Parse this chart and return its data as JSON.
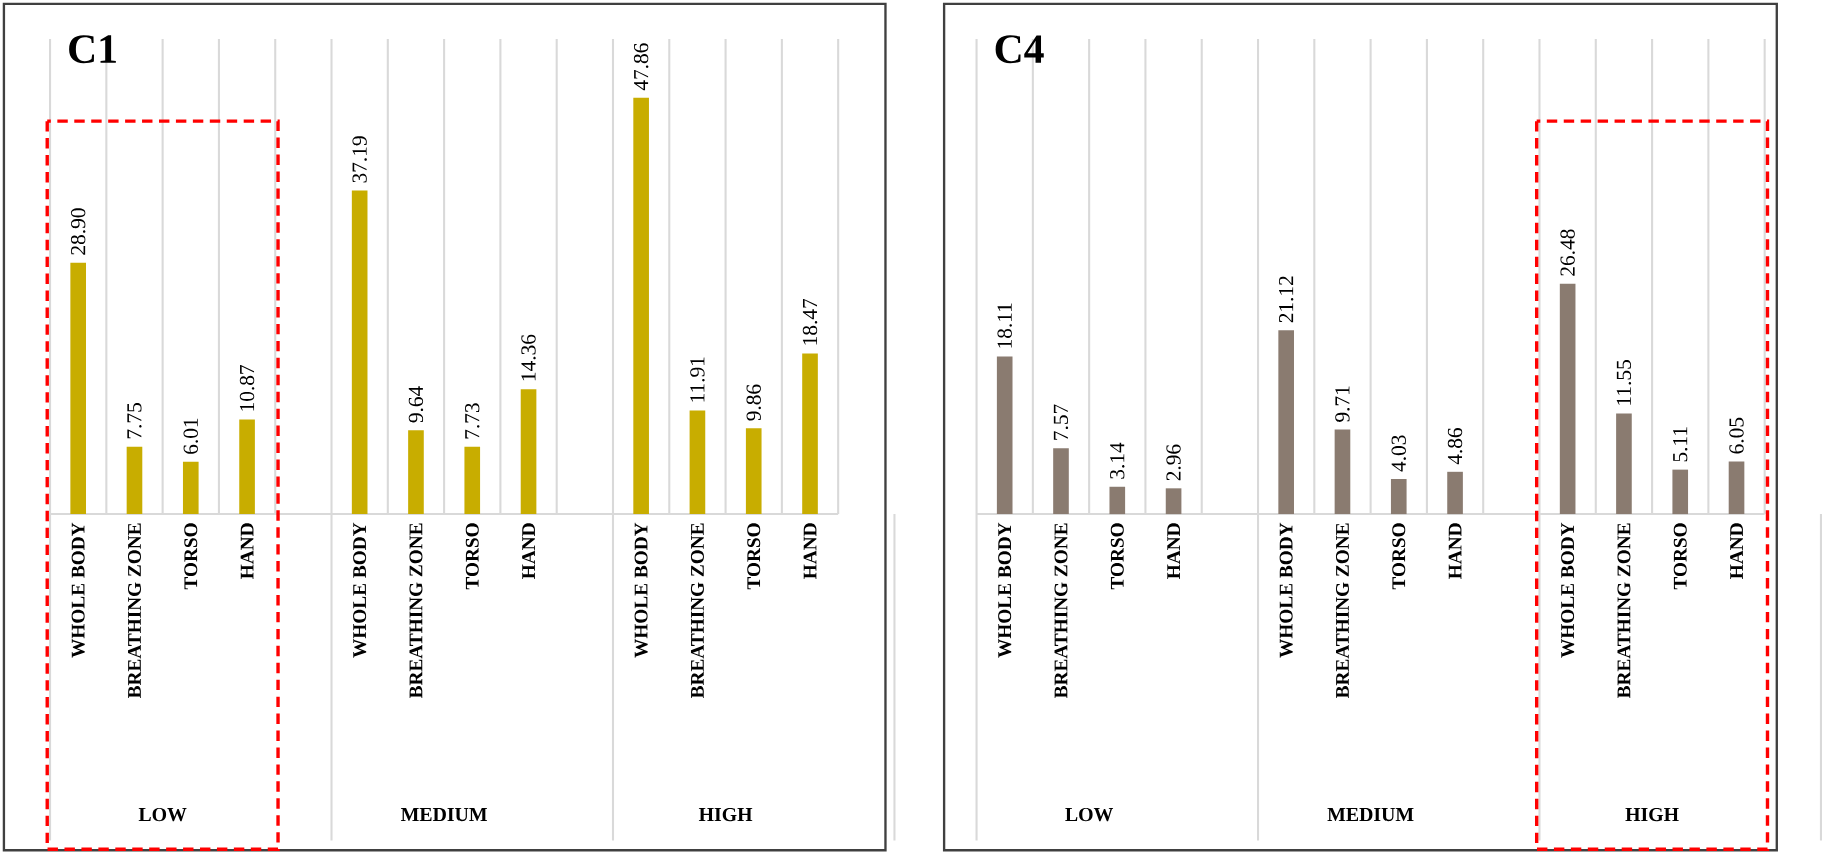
{
  "chart_data": [
    {
      "type": "bar",
      "title": "C1",
      "categories": [
        "WHOLE BODY",
        "BREATHING ZONE",
        "TORSO",
        "HAND",
        null,
        "WHOLE BODY",
        "BREATHING ZONE",
        "TORSO",
        "HAND",
        null,
        "WHOLE BODY",
        "BREATHING ZONE",
        "TORSO",
        "HAND"
      ],
      "values": [
        28.9,
        7.75,
        6.01,
        10.87,
        null,
        37.19,
        9.64,
        7.73,
        14.36,
        null,
        47.86,
        11.91,
        9.86,
        18.47
      ],
      "value_labels": [
        "28.90",
        "7.75",
        "6.01",
        "10.87",
        null,
        "37.19",
        "9.64",
        "7.73",
        "14.36",
        null,
        "47.86",
        "11.91",
        "9.86",
        "18.47"
      ],
      "color": "#c8ad00",
      "grid": "x",
      "annotations": [
        "LOW",
        "MEDIUM",
        "HIGH"
      ]
    },
    {
      "type": "bar",
      "title": "C4",
      "categories": [
        "WHOLE BODY",
        "BREATHING ZONE",
        "TORSO",
        "HAND",
        null,
        "WHOLE BODY",
        "BREATHING ZONE",
        "TORSO",
        "HAND",
        null,
        "WHOLE BODY",
        "BREATHING ZONE",
        "TORSO",
        "HAND"
      ],
      "values": [
        18.11,
        7.57,
        3.14,
        2.96,
        null,
        21.12,
        9.71,
        4.03,
        4.86,
        null,
        26.48,
        11.55,
        5.11,
        6.05
      ],
      "value_labels": [
        "18.11",
        "7.57",
        "3.14",
        "2.96",
        null,
        "21.12",
        "9.71",
        "4.03",
        "4.86",
        null,
        "26.48",
        "11.55",
        "5.11",
        "6.05"
      ],
      "color": "#8a7b70",
      "grid": "x",
      "annotations": [
        "LOW",
        "MEDIUM",
        "HIGH"
      ]
    }
  ]
}
